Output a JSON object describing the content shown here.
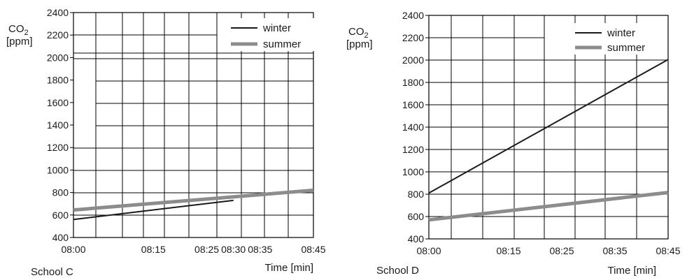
{
  "chart_data": [
    {
      "type": "line",
      "panel_label": "School C",
      "ylabel_main": "CO",
      "ylabel_sub": "2",
      "ylabel_unit": "[ppm]",
      "xlabel": "Time [min]",
      "ylim": [
        400,
        2400
      ],
      "yticks": [
        "400",
        "600",
        "800",
        "1000",
        "1200",
        "1400",
        "1600",
        "1800",
        "2000",
        "2200",
        "2400"
      ],
      "xlim": [
        "08:00",
        "08:45"
      ],
      "xtick_labels": [
        "08:00",
        "08:15",
        "08:25",
        "08:30",
        "08:35",
        "08:45"
      ],
      "grid": true,
      "legend_position": "top-right",
      "series": [
        {
          "name": "winter",
          "color": "#1a1a1a",
          "x": [
            "08:00",
            "08:30"
          ],
          "y": [
            560,
            730
          ]
        },
        {
          "name": "summer",
          "color": "#8c8c8c",
          "x": [
            "08:00",
            "08:45"
          ],
          "y": [
            645,
            820
          ]
        }
      ]
    },
    {
      "type": "line",
      "panel_label": "School D",
      "ylabel_main": "CO",
      "ylabel_sub": "2",
      "ylabel_unit": "[ppm]",
      "xlabel": "Time [min]",
      "ylim": [
        400,
        2400
      ],
      "yticks": [
        "400",
        "600",
        "800",
        "1000",
        "1200",
        "1400",
        "1600",
        "1800",
        "2000",
        "2200",
        "2400"
      ],
      "xlim": [
        "08:00",
        "08:45"
      ],
      "xtick_labels": [
        "08:00",
        "08:15",
        "08:25",
        "08:35",
        "08:45"
      ],
      "grid": true,
      "legend_position": "top-right",
      "series": [
        {
          "name": "winter",
          "color": "#1a1a1a",
          "x": [
            "08:00",
            "08:45"
          ],
          "y": [
            810,
            2005
          ]
        },
        {
          "name": "summer",
          "color": "#8c8c8c",
          "x": [
            "08:00",
            "08:45"
          ],
          "y": [
            570,
            815
          ]
        }
      ]
    }
  ]
}
